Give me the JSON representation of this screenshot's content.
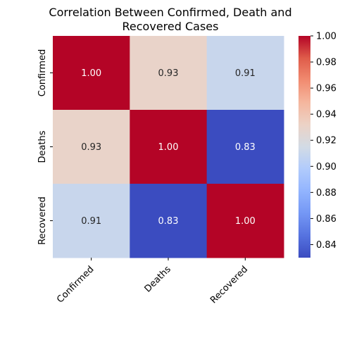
{
  "chart_data": {
    "type": "heatmap",
    "title_line1": "Correlation Between Confirmed, Death and",
    "title_line2": "Recovered Cases",
    "rows": [
      "Confirmed",
      "Deaths",
      "Recovered"
    ],
    "columns": [
      "Confirmed",
      "Deaths",
      "Recovered"
    ],
    "values": [
      [
        1.0,
        0.93,
        0.91
      ],
      [
        0.93,
        1.0,
        0.83
      ],
      [
        0.91,
        0.83,
        1.0
      ]
    ],
    "value_format": "0.00",
    "colormap": "coolwarm",
    "color_range": [
      0.83,
      1.0
    ],
    "colorbar_ticks": [
      "0.84",
      "0.86",
      "0.88",
      "0.90",
      "0.92",
      "0.94",
      "0.96",
      "0.98",
      "1.00"
    ],
    "colorbar_tick_values": [
      0.84,
      0.86,
      0.88,
      0.9,
      0.92,
      0.94,
      0.96,
      0.98,
      1.0
    ],
    "grid": false
  }
}
